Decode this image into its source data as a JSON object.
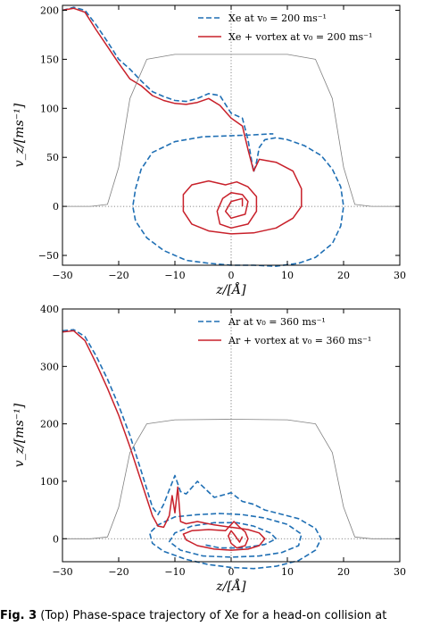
{
  "colors": {
    "blue": "#1f6fb4",
    "red": "#c8202a",
    "gray": "#808080"
  },
  "caption": {
    "label": "Fig. 3",
    "text": "(Top) Phase-space trajectory of Xe for a head-on collision at"
  },
  "chart_data": [
    {
      "type": "line",
      "title": "",
      "xlabel": "z/[Å]",
      "ylabel": "v_z/[ms⁻¹]",
      "xlim": [
        -30,
        30
      ],
      "ylim": [
        -60,
        205
      ],
      "xticks": [
        -30,
        -20,
        -10,
        0,
        10,
        20,
        30
      ],
      "yticks": [
        -50,
        0,
        50,
        100,
        150,
        200
      ],
      "tick_labels_x": [
        "−30",
        "−20",
        "−10",
        "0",
        "10",
        "20",
        "30"
      ],
      "tick_labels_y": [
        "−50",
        "0",
        "50",
        "100",
        "150",
        "200"
      ],
      "legend_position": "top-right",
      "series": [
        {
          "name": "Xe at v₀ = 200 ms⁻¹",
          "style": "dashed",
          "color": "blue",
          "x": [
            -30,
            -28,
            -26,
            -24,
            -22,
            -20,
            -18,
            -16,
            -14,
            -12,
            -10,
            -8,
            -6,
            -4,
            -2,
            0,
            2,
            3,
            4,
            4.5,
            5,
            6,
            8,
            10,
            13,
            16,
            18,
            19.5,
            20,
            19.5,
            18,
            15,
            12,
            8,
            4,
            0,
            -4,
            -8,
            -12,
            -15,
            -17,
            -17.5,
            -17,
            -16,
            -14,
            -10,
            -5,
            0,
            4,
            7,
            7.5
          ],
          "y": [
            200,
            203,
            200,
            185,
            168,
            150,
            140,
            128,
            117,
            112,
            108,
            107,
            110,
            115,
            113,
            95,
            90,
            68,
            35,
            45,
            60,
            68,
            70,
            68,
            62,
            52,
            38,
            20,
            0,
            -20,
            -38,
            -52,
            -58,
            -61,
            -60,
            -60,
            -58,
            -55,
            -45,
            -32,
            -15,
            0,
            18,
            38,
            55,
            66,
            71,
            72,
            73,
            74,
            74
          ]
        },
        {
          "name": "Xe + vortex at v₀ = 200 ms⁻¹",
          "style": "solid",
          "color": "red",
          "x": [
            -30,
            -28,
            -26,
            -24,
            -22,
            -20,
            -18,
            -16,
            -14,
            -12,
            -10,
            -8,
            -6,
            -4,
            -2,
            0,
            2,
            3,
            4,
            4.5,
            5,
            8,
            11,
            12.5,
            12.5,
            11,
            8,
            4,
            0,
            -4,
            -7,
            -8.5,
            -8.5,
            -7,
            -4,
            -1,
            1,
            3,
            4.5,
            4.5,
            3,
            0,
            -2,
            -2.5,
            -1.5,
            0,
            2,
            3,
            2.5,
            0,
            -1,
            0,
            2,
            2
          ],
          "y": [
            200,
            202,
            198,
            180,
            163,
            146,
            130,
            123,
            113,
            108,
            105,
            104,
            106,
            110,
            103,
            90,
            82,
            58,
            36,
            42,
            48,
            45,
            36,
            18,
            0,
            -12,
            -22,
            -27,
            -28,
            -25,
            -18,
            -5,
            12,
            22,
            26,
            22,
            25,
            20,
            10,
            -5,
            -18,
            -22,
            -18,
            -5,
            8,
            14,
            12,
            5,
            -8,
            -12,
            -5,
            5,
            8,
            0
          ]
        },
        {
          "name": "",
          "style": "thin",
          "color": "gray",
          "x": [
            -30,
            -25,
            -22,
            -20,
            -18,
            -15,
            -10,
            0,
            10,
            15,
            18,
            20,
            22,
            25,
            30
          ],
          "y": [
            0,
            0,
            2,
            40,
            110,
            150,
            155,
            155,
            155,
            150,
            110,
            40,
            2,
            0,
            0
          ]
        }
      ]
    },
    {
      "type": "line",
      "title": "",
      "xlabel": "z/[Å]",
      "ylabel": "v_z/[ms⁻¹]",
      "xlim": [
        -30,
        30
      ],
      "ylim": [
        -40,
        400
      ],
      "xticks": [
        -30,
        -20,
        -10,
        0,
        10,
        20,
        30
      ],
      "yticks": [
        0,
        100,
        200,
        300,
        400
      ],
      "tick_labels_x": [
        "−30",
        "−20",
        "−10",
        "0",
        "10",
        "20",
        "30"
      ],
      "tick_labels_y": [
        "0",
        "100",
        "200",
        "300",
        "400"
      ],
      "legend_position": "top-right",
      "series": [
        {
          "name": "Ar at v₀ = 360 ms⁻¹",
          "style": "dashed",
          "color": "blue",
          "x": [
            -30,
            -28,
            -26,
            -24,
            -22,
            -20,
            -18,
            -16,
            -14,
            -13,
            -12,
            -11,
            -10,
            -9,
            -8,
            -6,
            -3,
            0,
            2,
            4,
            6,
            8,
            12,
            15,
            16,
            15,
            12,
            8,
            4,
            0,
            -4,
            -8,
            -12,
            -14,
            -14.5,
            -13,
            -10,
            -6,
            -2,
            2,
            6,
            10,
            12.5,
            12,
            9,
            5,
            0,
            -5,
            -9,
            -11,
            -10,
            -7,
            -3,
            1,
            4,
            7,
            8,
            6,
            2,
            -2,
            -5
          ],
          "y": [
            362,
            364,
            352,
            318,
            278,
            232,
            180,
            118,
            55,
            42,
            60,
            85,
            110,
            82,
            78,
            100,
            72,
            80,
            65,
            60,
            50,
            45,
            35,
            18,
            0,
            -20,
            -38,
            -48,
            -52,
            -50,
            -45,
            -36,
            -22,
            -8,
            10,
            24,
            38,
            42,
            44,
            42,
            36,
            25,
            8,
            -12,
            -24,
            -30,
            -32,
            -30,
            -20,
            -5,
            10,
            22,
            28,
            28,
            22,
            10,
            0,
            -10,
            -16,
            -16,
            -10
          ]
        },
        {
          "name": "Ar + vortex at v₀ = 360 ms⁻¹",
          "style": "solid",
          "color": "red",
          "x": [
            -30,
            -28,
            -26,
            -24,
            -22,
            -20,
            -18,
            -16,
            -14,
            -13,
            -12,
            -11,
            -10.5,
            -10,
            -9.5,
            -9,
            -8,
            -6,
            -3,
            0,
            3,
            5,
            6,
            5,
            3,
            0,
            -3,
            -6,
            -8,
            -8.5,
            -7,
            -4,
            -1,
            0.5,
            1.5,
            2.5,
            3,
            2.5,
            1,
            0,
            -0.5,
            0,
            0.5,
            1.5,
            2
          ],
          "y": [
            360,
            362,
            345,
            305,
            262,
            215,
            160,
            100,
            40,
            22,
            20,
            40,
            75,
            45,
            90,
            30,
            26,
            30,
            24,
            20,
            16,
            10,
            0,
            -12,
            -18,
            -20,
            -18,
            -12,
            -2,
            8,
            14,
            16,
            14,
            30,
            20,
            12,
            0,
            -12,
            -16,
            -8,
            5,
            14,
            8,
            -6,
            4
          ]
        },
        {
          "name": "",
          "style": "thin",
          "color": "gray",
          "x": [
            -30,
            -25,
            -22,
            -20,
            -18,
            -15,
            -10,
            0,
            10,
            15,
            18,
            20,
            22,
            25,
            30
          ],
          "y": [
            0,
            0,
            3,
            55,
            150,
            200,
            207,
            208,
            207,
            200,
            150,
            55,
            3,
            0,
            0
          ]
        }
      ]
    }
  ]
}
